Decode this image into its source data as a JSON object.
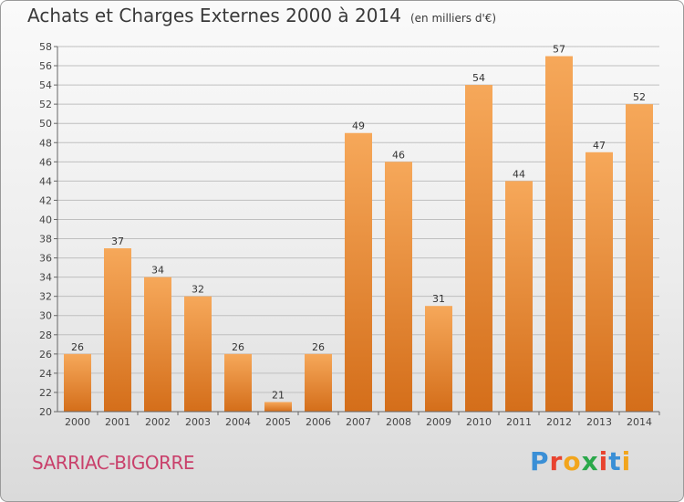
{
  "title": "Achats et Charges Externes 2000 à 2014",
  "unit_note": "(en milliers d'€)",
  "city": "SARRIAC-BIGORRE",
  "logo": {
    "text": "Proxiti",
    "colors": [
      "#3a8fd6",
      "#e8432f",
      "#f2a51c",
      "#2aa84a",
      "#e8432f",
      "#3a8fd6",
      "#f2a51c"
    ]
  },
  "colors": {
    "bar_top": "#f6a85a",
    "bar_bottom": "#d46e1a",
    "city": "#c9406b",
    "grid": "#bfbfbf"
  },
  "chart_data": {
    "type": "bar",
    "title": "Achats et Charges Externes 2000 à 2014",
    "categories": [
      "2000",
      "2001",
      "2002",
      "2003",
      "2004",
      "2005",
      "2006",
      "2007",
      "2008",
      "2009",
      "2010",
      "2011",
      "2012",
      "2013",
      "2014"
    ],
    "values": [
      26,
      37,
      34,
      32,
      26,
      21,
      26,
      49,
      46,
      31,
      54,
      44,
      57,
      47,
      52
    ],
    "ylim": [
      20,
      58
    ],
    "yticks": [
      20,
      22,
      24,
      26,
      28,
      30,
      32,
      34,
      36,
      38,
      40,
      42,
      44,
      46,
      48,
      50,
      52,
      54,
      56,
      58
    ],
    "grid": true
  }
}
